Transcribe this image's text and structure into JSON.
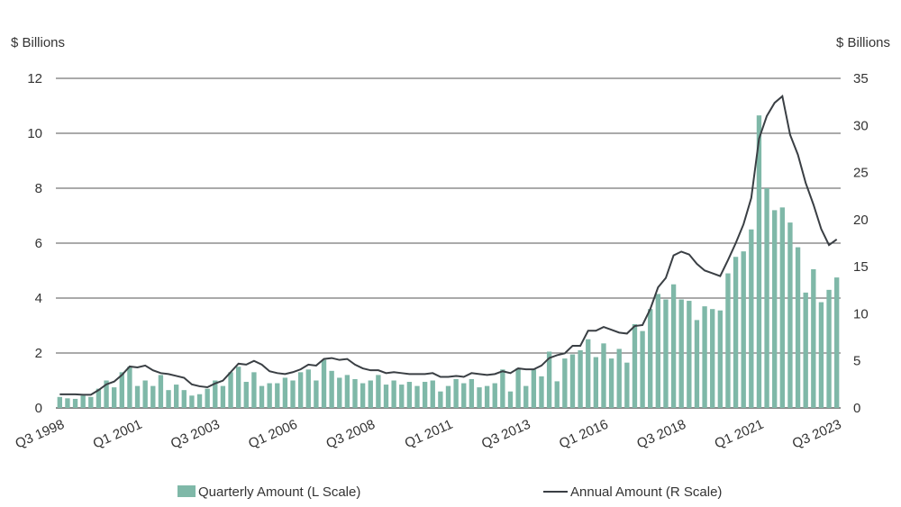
{
  "chart_data": {
    "type": "bar+line",
    "left_axis_title": "$ Billions",
    "right_axis_title": "$ Billions",
    "left_ylim": [
      0,
      12
    ],
    "left_ticks": [
      0,
      2,
      4,
      6,
      8,
      10,
      12
    ],
    "right_ylim": [
      0,
      35
    ],
    "right_ticks": [
      0,
      5,
      10,
      15,
      20,
      25,
      30,
      35
    ],
    "x_tick_labels": [
      {
        "label": "Q3 1998",
        "index": 0
      },
      {
        "label": "Q1 2001",
        "index": 10
      },
      {
        "label": "Q3 2003",
        "index": 20
      },
      {
        "label": "Q1 2006",
        "index": 30
      },
      {
        "label": "Q3 2008",
        "index": 40
      },
      {
        "label": "Q1 2011",
        "index": 50
      },
      {
        "label": "Q3 2013",
        "index": 60
      },
      {
        "label": "Q1 2016",
        "index": 70
      },
      {
        "label": "Q3 2018",
        "index": 80
      },
      {
        "label": "Q1 2021",
        "index": 90
      },
      {
        "label": "Q3 2023",
        "index": 100
      }
    ],
    "grid": "horizontal",
    "legend_position": "bottom",
    "series": [
      {
        "name": "Quarterly Amount (L Scale)",
        "type": "bar",
        "axis": "left",
        "color": "#7fb8a8",
        "values": [
          0.4,
          0.35,
          0.33,
          0.45,
          0.4,
          0.7,
          1.0,
          0.75,
          1.3,
          1.5,
          0.8,
          1.0,
          0.8,
          1.2,
          0.65,
          0.85,
          0.65,
          0.45,
          0.5,
          0.7,
          1.0,
          0.8,
          1.3,
          1.5,
          0.95,
          1.3,
          0.8,
          0.9,
          0.9,
          1.1,
          1.0,
          1.3,
          1.4,
          1.0,
          1.75,
          1.35,
          1.1,
          1.2,
          1.05,
          0.9,
          1.0,
          1.2,
          0.85,
          1.0,
          0.85,
          0.95,
          0.8,
          0.95,
          1.0,
          0.6,
          0.8,
          1.05,
          0.9,
          1.05,
          0.75,
          0.8,
          0.9,
          1.4,
          0.6,
          1.45,
          0.8,
          1.4,
          1.15,
          2.05,
          0.97,
          1.8,
          1.95,
          2.1,
          2.5,
          1.85,
          2.35,
          1.8,
          2.15,
          1.65,
          3.05,
          2.8,
          3.6,
          4.15,
          3.95,
          4.5,
          3.95,
          3.9,
          3.2,
          3.7,
          3.6,
          3.55,
          4.9,
          5.5,
          5.7,
          6.5,
          10.65,
          8.0,
          7.2,
          7.3,
          6.75,
          5.85,
          4.2,
          5.05,
          3.85,
          4.3,
          4.75
        ]
      },
      {
        "name": "Annual Amount (R Scale)",
        "type": "line",
        "axis": "right",
        "color": "#3a3f44",
        "values": [
          1.45,
          1.45,
          1.45,
          1.4,
          1.4,
          1.9,
          2.5,
          2.8,
          3.5,
          4.4,
          4.3,
          4.5,
          4.0,
          3.7,
          3.6,
          3.4,
          3.2,
          2.5,
          2.3,
          2.2,
          2.6,
          2.9,
          3.8,
          4.7,
          4.6,
          5.0,
          4.6,
          3.9,
          3.7,
          3.6,
          3.8,
          4.1,
          4.6,
          4.5,
          5.2,
          5.3,
          5.1,
          5.2,
          4.6,
          4.2,
          4.0,
          4.0,
          3.7,
          3.8,
          3.7,
          3.6,
          3.6,
          3.6,
          3.7,
          3.3,
          3.3,
          3.4,
          3.3,
          3.7,
          3.6,
          3.5,
          3.6,
          3.9,
          3.7,
          4.2,
          4.1,
          4.1,
          4.5,
          5.3,
          5.6,
          5.8,
          6.6,
          6.6,
          8.2,
          8.2,
          8.6,
          8.3,
          8.0,
          7.9,
          8.7,
          8.8,
          10.5,
          12.8,
          13.8,
          16.2,
          16.6,
          16.3,
          15.3,
          14.6,
          14.3,
          14.0,
          15.7,
          17.5,
          19.5,
          22.3,
          28.6,
          31.0,
          32.4,
          33.1,
          29.0,
          26.9,
          23.9,
          21.6,
          19.0,
          17.3,
          17.9
        ]
      }
    ]
  }
}
